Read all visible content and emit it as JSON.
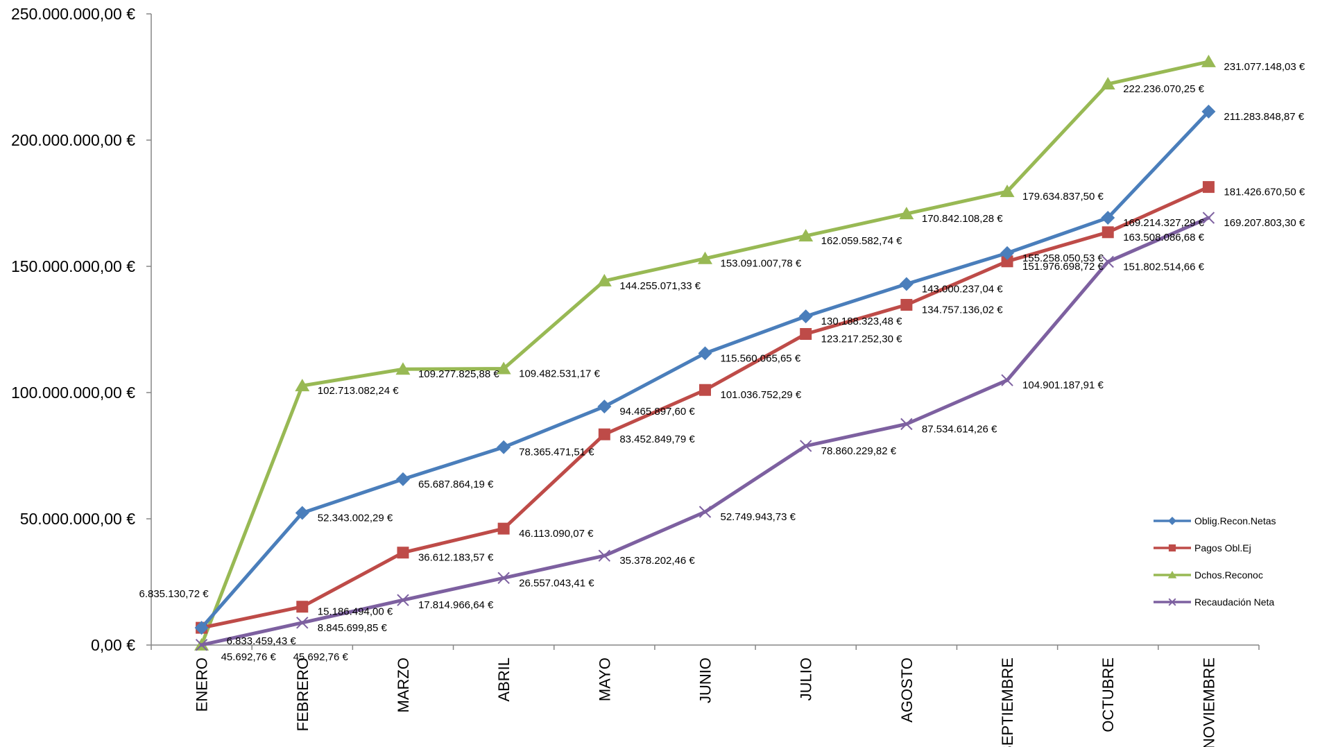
{
  "chart_data": {
    "type": "line",
    "title": "",
    "xlabel": "",
    "ylabel": "",
    "ylim": [
      0,
      250000000
    ],
    "y_ticks": [
      "0,00 €",
      "50.000.000,00 €",
      "100.000.000,00 €",
      "150.000.000,00 €",
      "200.000.000,00 €",
      "250.000.000,00 €"
    ],
    "categories": [
      "ENERO",
      "FEBRERO",
      "MARZO",
      "ABRIL",
      "MAYO",
      "JUNIO",
      "JULIO",
      "AGOSTO",
      "SEPTIEMBRE",
      "OCTUBRE",
      "NOVIEMBRE"
    ],
    "legend_position": "right",
    "grid": false,
    "series": [
      {
        "name": "Oblig.Recon.Netas",
        "color": "#4a7ebb",
        "marker": "diamond",
        "values": [
          6833459.43,
          52343002.29,
          65687864.19,
          78365471.51,
          94465897.6,
          115560065.65,
          130188323.48,
          143000237.04,
          155258050.53,
          169214327.29,
          211283848.87
        ],
        "labels": [
          "6.833.459,43 €",
          "52.343.002,29 €",
          "65.687.864,19 €",
          "78.365.471,51 €",
          "94.465.897,60 €",
          "115.560.065,65 €",
          "130.188.323,48 €",
          "143.000.237,04 €",
          "155.258.050,53 €",
          "169.214.327,29 €",
          "211.283.848,87 €"
        ]
      },
      {
        "name": "Pagos Obl.Ej",
        "color": "#be4b48",
        "marker": "square",
        "values": [
          6835130.72,
          15186494.0,
          36612183.57,
          46113090.07,
          83452849.79,
          101036752.29,
          123217252.3,
          134757136.02,
          151976698.72,
          163508086.68,
          181426670.5
        ],
        "labels": [
          "6.835.130,72 €",
          "15.186.494,00 €",
          "36.612.183,57 €",
          "46.113.090,07 €",
          "83.452.849,79 €",
          "101.036.752,29 €",
          "123.217.252,30 €",
          "134.757.136,02 €",
          "151.976.698,72 €",
          "163.508.086,68 €",
          "181.426.670,50 €"
        ]
      },
      {
        "name": "Dchos.Reconoc",
        "color": "#98b954",
        "marker": "triangle",
        "values": [
          45692.76,
          102713082.24,
          109277825.88,
          109482531.17,
          144255071.33,
          153091007.78,
          162059582.74,
          170842108.28,
          179634837.5,
          222236070.25,
          231077148.03
        ],
        "labels": [
          "45.692,76 €",
          "102.713.082,24 €",
          "109.277.825,88 €",
          "109.482.531,17 €",
          "144.255.071,33 €",
          "153.091.007,78 €",
          "162.059.582,74 €",
          "170.842.108,28 €",
          "179.634.837,50 €",
          "222.236.070,25 €",
          "231.077.148,03 €"
        ]
      },
      {
        "name": "Recaudación Neta",
        "color": "#7d60a0",
        "marker": "x",
        "values": [
          45692.76,
          8845699.85,
          17814966.64,
          26557043.41,
          35378202.46,
          52749943.73,
          78860229.82,
          87534614.26,
          104901187.91,
          151802514.66,
          169207803.3
        ],
        "labels": [
          "45.692,76 €",
          "8.845.699,85 €",
          "17.814.966,64 €",
          "26.557.043,41 €",
          "35.378.202,46 €",
          "52.749.943,73 €",
          "78.860.229,82 €",
          "87.534.614,26 €",
          "104.901.187,91 €",
          "151.802.514,66 €",
          "169.207.803,30 €"
        ]
      }
    ]
  }
}
